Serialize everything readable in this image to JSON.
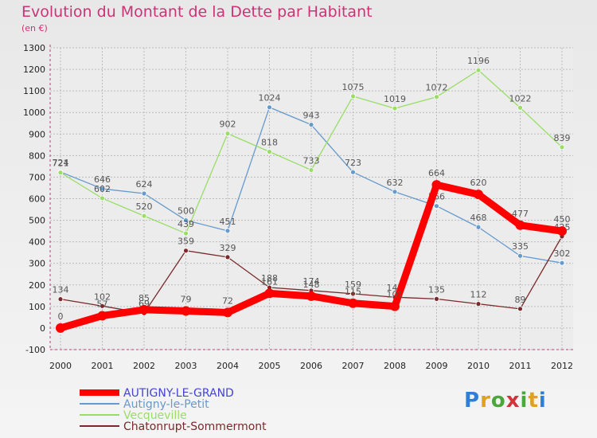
{
  "page": {
    "title": "Evolution du Montant de la Dette par Habitant",
    "subtitle": "(en €)",
    "brand": "Proxiti"
  },
  "colors": {
    "title": "#cc3377",
    "axis_label": "#222222",
    "grid": "#bbbbbb",
    "axis_tick": "#cc3377",
    "value_label": "#555555"
  },
  "chart_data": {
    "type": "line",
    "title": "Evolution du Montant de la Dette par Habitant",
    "subtitle": "(en €)",
    "xlabel": "",
    "ylabel": "",
    "x": [
      "2000",
      "2001",
      "2002",
      "2003",
      "2004",
      "2005",
      "2006",
      "2007",
      "2008",
      "2009",
      "2010",
      "2011",
      "2012"
    ],
    "ylim": [
      -100,
      1300
    ],
    "yticks": [
      -100,
      0,
      100,
      200,
      300,
      400,
      500,
      600,
      700,
      800,
      900,
      1000,
      1100,
      1200,
      1300
    ],
    "grid": true,
    "legend_position": "bottom-left",
    "series": [
      {
        "name": "AUTIGNY-LE-GRAND",
        "color": "#ff0000",
        "legend_color": "#4444cc",
        "values": [
          0,
          57,
          85,
          79,
          72,
          161,
          148,
          115,
          101,
          664,
          620,
          477,
          450
        ]
      },
      {
        "name": "Autigny-le-Petit",
        "color": "#6699cc",
        "legend_color": "#6699cc",
        "values": [
          724,
          646,
          624,
          500,
          451,
          1024,
          943,
          723,
          632,
          566,
          468,
          335,
          302
        ]
      },
      {
        "name": "Vecqueville",
        "color": "#99dd66",
        "legend_color": "#99dd66",
        "values": [
          721,
          602,
          520,
          439,
          902,
          818,
          733,
          1075,
          1019,
          1072,
          1196,
          1022,
          839
        ]
      },
      {
        "name": "Chatonrupt-Sommermont",
        "color": "#7a2a2a",
        "legend_color": "#7a2a2a",
        "values": [
          134,
          102,
          69,
          359,
          329,
          188,
          174,
          159,
          143,
          135,
          112,
          89,
          425
        ]
      }
    ]
  }
}
